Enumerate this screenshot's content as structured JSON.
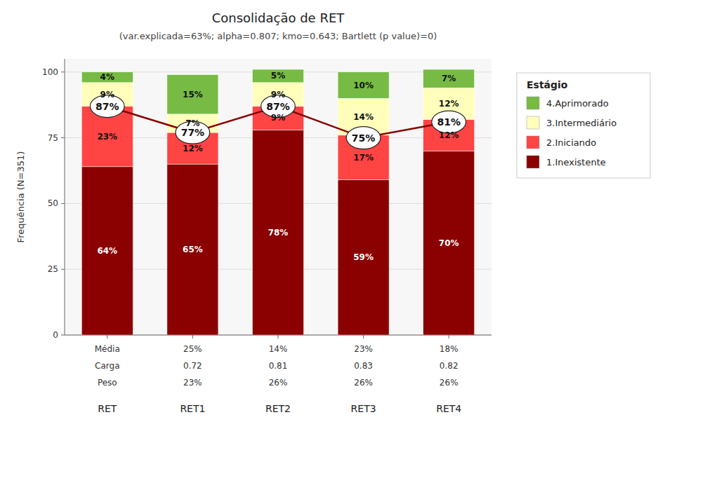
{
  "chart_data": {
    "type": "bar",
    "stacked": true,
    "title": "Consolidação de RET",
    "subtitle": "(var.explicada=63%; alpha=0.807; kmo=0.643; Bartlett (p value)=0)",
    "ylabel": "Frequência (N=351)",
    "categories": [
      "RET",
      "RET1",
      "RET2",
      "RET3",
      "RET4"
    ],
    "annotations": [
      [
        "Média",
        "Carga",
        "Peso"
      ],
      [
        "25%",
        "0.72",
        "23%"
      ],
      [
        "14%",
        "0.81",
        "26%"
      ],
      [
        "23%",
        "0.83",
        "26%"
      ],
      [
        "18%",
        "0.82",
        "26%"
      ]
    ],
    "series": [
      {
        "name": "1.Inexistente",
        "color": "#8B0000",
        "values": [
          64,
          65,
          78,
          59,
          70
        ],
        "value_labels": [
          "64%",
          "65%",
          "78%",
          "59%",
          "70%"
        ]
      },
      {
        "name": "2.Iniciando",
        "color": "#FF4444",
        "values": [
          23,
          12,
          9,
          17,
          12
        ],
        "value_labels": [
          "23%",
          "12%",
          "9%",
          "17%",
          "12%"
        ]
      },
      {
        "name": "3.Intermediário",
        "color": "#FFFFBB",
        "values": [
          9,
          7,
          9,
          14,
          12
        ],
        "value_labels": [
          "9%",
          "7%",
          "9%",
          "14%",
          "12%"
        ]
      },
      {
        "name": "4.Aprimorado",
        "color": "#77BB44",
        "values": [
          4,
          15,
          5,
          10,
          7
        ],
        "value_labels": [
          "4%",
          "15%",
          "5%",
          "10%",
          "7%"
        ]
      },
      {
        "type": "line",
        "marker": "circle",
        "color": "#8B0000",
        "values": [
          87,
          77,
          87,
          75,
          81
        ],
        "value_labels": [
          "87%",
          "77%",
          "87%",
          "75%",
          "81%"
        ]
      }
    ],
    "data_labels": true,
    "ylim": [
      0,
      105
    ],
    "yticks": [
      0,
      25,
      50,
      75,
      100
    ],
    "grid": true,
    "legend": "right",
    "legend_title": "Estágio"
  }
}
